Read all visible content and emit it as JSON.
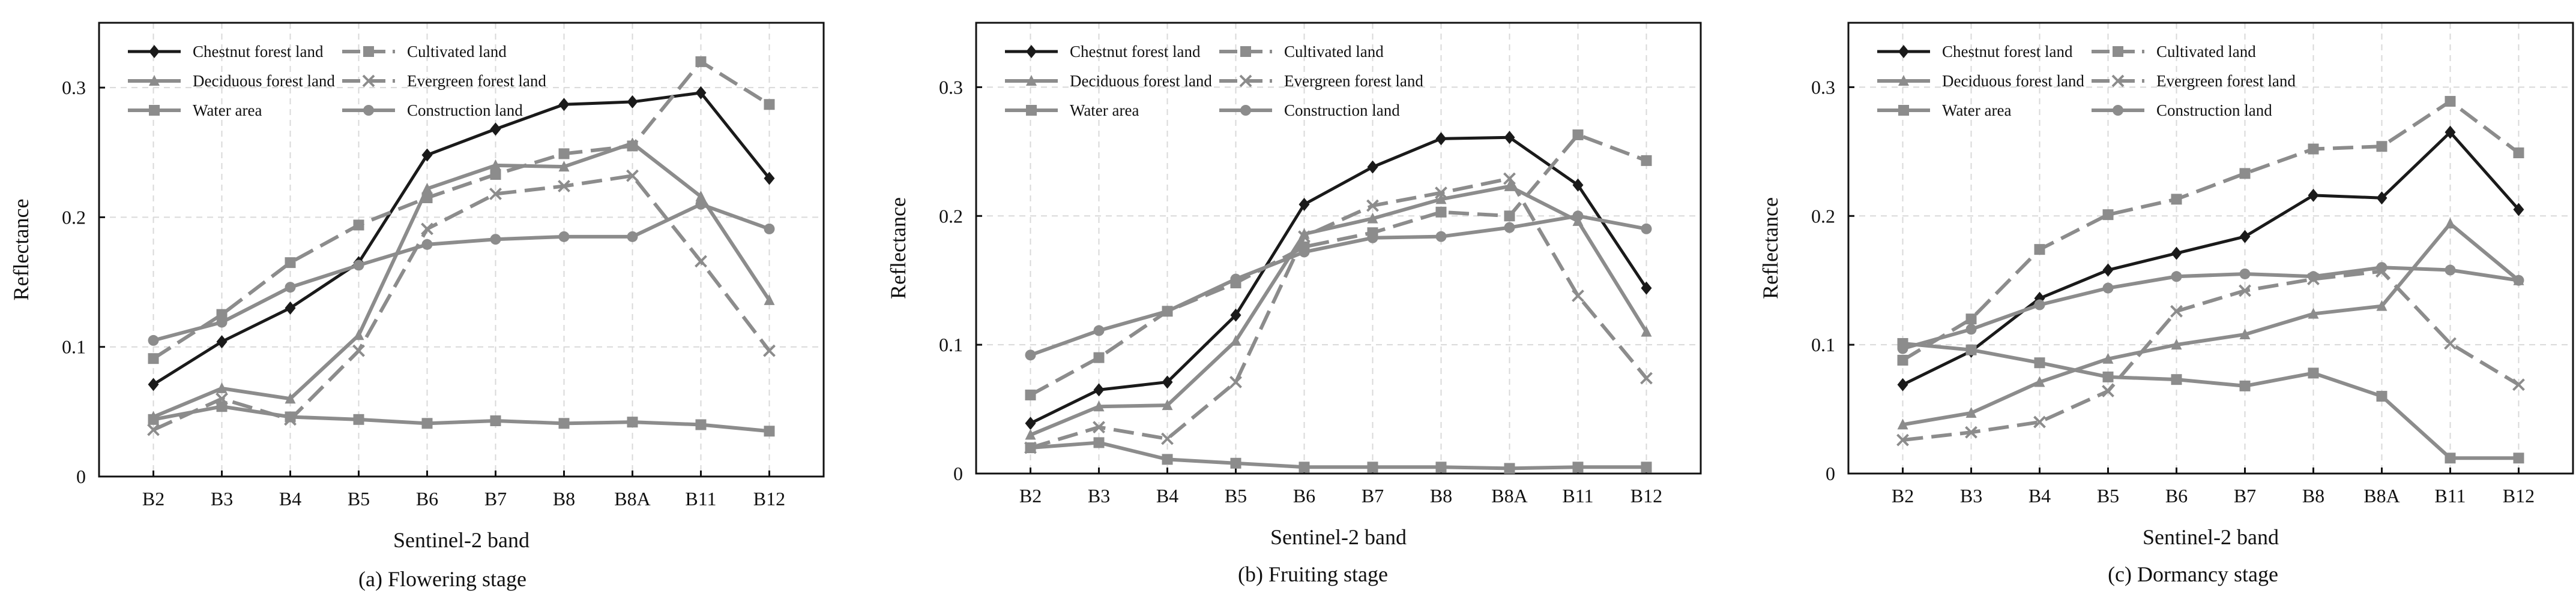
{
  "figure": {
    "panels": [
      {
        "caption": "(a)  Flowering stage"
      },
      {
        "caption": "(b) Fruiting stage"
      },
      {
        "caption": "(c)  Dormancy stage"
      }
    ]
  },
  "chart_data": [
    {
      "type": "line",
      "title": "(a)  Flowering stage",
      "xlabel": "Sentinel-2 band",
      "ylabel": "Reflectance",
      "categories": [
        "B2",
        "B3",
        "B4",
        "B5",
        "B6",
        "B7",
        "B8",
        "B8A",
        "B11",
        "B12"
      ],
      "ylim": [
        0,
        0.35
      ],
      "yticks": [
        0,
        0.1,
        0.2,
        0.3
      ],
      "ytick_labels": [
        "0",
        "0.1",
        "0.2",
        "0.3"
      ],
      "grid": true,
      "legend_position": "top-left",
      "series": [
        {
          "name": "Chestnut forest land",
          "color": "#1a1a1a",
          "marker": "diamond",
          "dashed": false,
          "values": [
            0.071,
            0.104,
            0.13,
            0.165,
            0.248,
            0.268,
            0.287,
            0.289,
            0.296,
            0.23
          ]
        },
        {
          "name": "Cultivated land",
          "color": "#8c8c8c",
          "marker": "square",
          "dashed": true,
          "values": [
            0.091,
            0.125,
            0.165,
            0.194,
            0.215,
            0.233,
            0.249,
            0.255,
            0.32,
            0.287
          ]
        },
        {
          "name": "Deciduous forest land",
          "color": "#8c8c8c",
          "marker": "triangle",
          "dashed": false,
          "values": [
            0.046,
            0.068,
            0.06,
            0.109,
            0.222,
            0.24,
            0.239,
            0.257,
            0.216,
            0.136
          ]
        },
        {
          "name": "Evergreen forest land",
          "color": "#8c8c8c",
          "marker": "x",
          "dashed": true,
          "values": [
            0.036,
            0.06,
            0.044,
            0.097,
            0.191,
            0.218,
            0.224,
            0.232,
            0.166,
            0.097
          ]
        },
        {
          "name": "Water area",
          "color": "#8c8c8c",
          "marker": "square",
          "dashed": false,
          "values": [
            0.044,
            0.054,
            0.046,
            0.044,
            0.041,
            0.043,
            0.041,
            0.042,
            0.04,
            0.035
          ]
        },
        {
          "name": "Construction land",
          "color": "#8c8c8c",
          "marker": "circle",
          "dashed": false,
          "values": [
            0.105,
            0.119,
            0.146,
            0.163,
            0.179,
            0.183,
            0.185,
            0.185,
            0.21,
            0.191
          ]
        }
      ]
    },
    {
      "type": "line",
      "title": "(b) Fruiting stage",
      "xlabel": "Sentinel-2 band",
      "ylabel": "Reflectance",
      "categories": [
        "B2",
        "B3",
        "B4",
        "B5",
        "B6",
        "B7",
        "B8",
        "B8A",
        "B11",
        "B12"
      ],
      "ylim": [
        0,
        0.35
      ],
      "yticks": [
        0,
        0.1,
        0.2,
        0.3
      ],
      "ytick_labels": [
        "0",
        "0.1",
        "0.2",
        "0.3"
      ],
      "grid": true,
      "legend_position": "top-left",
      "series": [
        {
          "name": "Chestnut forest land",
          "color": "#1a1a1a",
          "marker": "diamond",
          "dashed": false,
          "values": [
            0.039,
            0.065,
            0.071,
            0.123,
            0.209,
            0.238,
            0.26,
            0.261,
            0.224,
            0.144
          ]
        },
        {
          "name": "Cultivated land",
          "color": "#8c8c8c",
          "marker": "square",
          "dashed": true,
          "values": [
            0.061,
            0.09,
            0.126,
            0.148,
            0.176,
            0.187,
            0.203,
            0.2,
            0.263,
            0.243
          ]
        },
        {
          "name": "Deciduous forest land",
          "color": "#8c8c8c",
          "marker": "triangle",
          "dashed": false,
          "values": [
            0.03,
            0.052,
            0.053,
            0.103,
            0.186,
            0.198,
            0.213,
            0.223,
            0.196,
            0.11
          ]
        },
        {
          "name": "Evergreen forest land",
          "color": "#8c8c8c",
          "marker": "x",
          "dashed": true,
          "values": [
            0.02,
            0.036,
            0.027,
            0.071,
            0.184,
            0.208,
            0.218,
            0.229,
            0.138,
            0.074
          ]
        },
        {
          "name": "Water area",
          "color": "#8c8c8c",
          "marker": "square",
          "dashed": false,
          "values": [
            0.02,
            0.024,
            0.011,
            0.008,
            0.005,
            0.005,
            0.005,
            0.004,
            0.005,
            0.005
          ]
        },
        {
          "name": "Construction land",
          "color": "#8c8c8c",
          "marker": "circle",
          "dashed": false,
          "values": [
            0.092,
            0.111,
            0.126,
            0.151,
            0.172,
            0.183,
            0.184,
            0.191,
            0.2,
            0.19
          ]
        }
      ]
    },
    {
      "type": "line",
      "title": "(c)  Dormancy stage",
      "xlabel": "Sentinel-2 band",
      "ylabel": "Reflectance",
      "categories": [
        "B2",
        "B3",
        "B4",
        "B5",
        "B6",
        "B7",
        "B8",
        "B8A",
        "B11",
        "B12"
      ],
      "ylim": [
        0,
        0.35
      ],
      "yticks": [
        0,
        0.1,
        0.2,
        0.3
      ],
      "ytick_labels": [
        "0",
        "0.1",
        "0.2",
        "0.3"
      ],
      "grid": true,
      "legend_position": "top-left",
      "series": [
        {
          "name": "Chestnut forest land",
          "color": "#1a1a1a",
          "marker": "diamond",
          "dashed": false,
          "values": [
            0.069,
            0.095,
            0.136,
            0.158,
            0.171,
            0.184,
            0.216,
            0.214,
            0.265,
            0.205
          ]
        },
        {
          "name": "Cultivated land",
          "color": "#8c8c8c",
          "marker": "square",
          "dashed": true,
          "values": [
            0.088,
            0.12,
            0.174,
            0.201,
            0.213,
            0.233,
            0.252,
            0.254,
            0.289,
            0.249
          ]
        },
        {
          "name": "Deciduous forest land",
          "color": "#8c8c8c",
          "marker": "triangle",
          "dashed": false,
          "values": [
            0.038,
            0.047,
            0.071,
            0.089,
            0.1,
            0.108,
            0.124,
            0.13,
            0.194,
            0.15
          ]
        },
        {
          "name": "Evergreen forest land",
          "color": "#8c8c8c",
          "marker": "x",
          "dashed": true,
          "values": [
            0.026,
            0.032,
            0.04,
            0.064,
            0.126,
            0.142,
            0.151,
            0.157,
            0.101,
            0.069
          ]
        },
        {
          "name": "Water area",
          "color": "#8c8c8c",
          "marker": "square",
          "dashed": false,
          "values": [
            0.101,
            0.096,
            0.086,
            0.075,
            0.073,
            0.068,
            0.078,
            0.06,
            0.012,
            0.012
          ]
        },
        {
          "name": "Construction land",
          "color": "#8c8c8c",
          "marker": "circle",
          "dashed": false,
          "values": [
            0.097,
            0.112,
            0.131,
            0.144,
            0.153,
            0.155,
            0.153,
            0.16,
            0.158,
            0.15
          ]
        }
      ]
    }
  ]
}
